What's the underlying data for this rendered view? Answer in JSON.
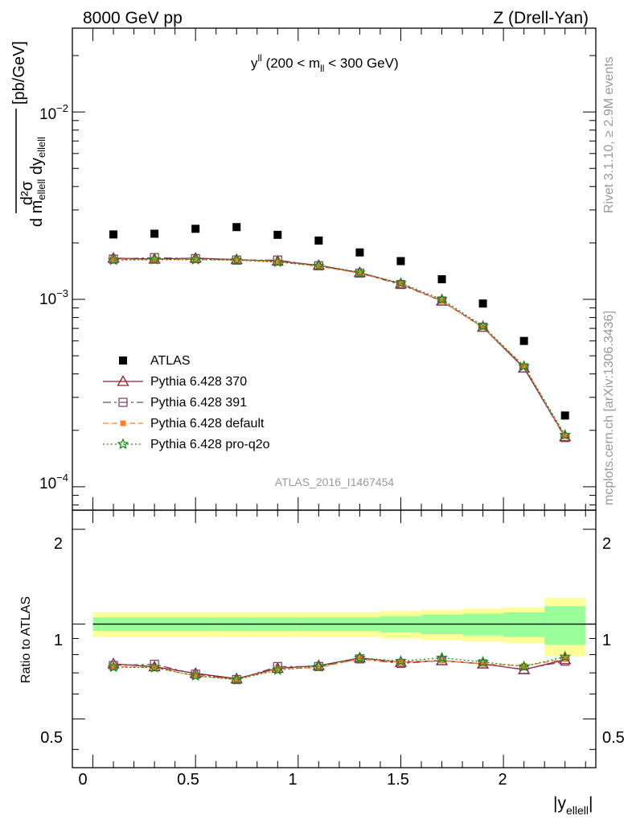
{
  "header": {
    "left": "8000 GeV pp",
    "right": "Z (Drell-Yan)"
  },
  "side": {
    "rivet": "Rivet 3.1.10, ≥ 2.9M events",
    "mcplots": "mcplots.cern.ch [arXiv:1306.3436]"
  },
  "plot_title": {
    "main": "y",
    "sup": "ll",
    "range_a": " (200 < m",
    "sub": "ll",
    "range_b": " < 300 GeV)"
  },
  "analysis_tag": "ATLAS_2016_I1467454",
  "y_axis_main": {
    "num": "d²σ",
    "den_a": "d m",
    "den_sub": "ellell",
    "den_b": " dy",
    "den_sub2": "ellell",
    "units": "[pb/GeV]"
  },
  "y_axis_ratio": "Ratio to ATLAS",
  "x_axis": {
    "label": "|y",
    "sub": "ellell",
    "close": "|"
  },
  "main_ticks": [
    {
      "base": "10",
      "exp": "−2"
    },
    {
      "base": "10",
      "exp": "−3"
    },
    {
      "base": "10",
      "exp": "−4"
    }
  ],
  "ratio_ticks": [
    "2",
    "1",
    "0.5"
  ],
  "x_ticks": [
    "0",
    "0.5",
    "1",
    "1.5",
    "2"
  ],
  "colors": {
    "data": "#000000",
    "p370": "#9b1b30",
    "p391": "#7a4a66",
    "pdef": "#ff7f2a",
    "pq2o": "#1a8a1a",
    "band_inner": "#99ff99",
    "band_outer": "#ffff99"
  },
  "chart_data": {
    "type": "scatter",
    "x": [
      0.1,
      0.3,
      0.5,
      0.7,
      0.9,
      1.1,
      1.3,
      1.5,
      1.7,
      1.9,
      2.1,
      2.3
    ],
    "x_edges": [
      0,
      0.2,
      0.4,
      0.6,
      0.8,
      1.0,
      1.2,
      1.4,
      1.6,
      1.8,
      2.0,
      2.2,
      2.4
    ],
    "xlim": [
      -0.1,
      2.45
    ],
    "ylim_main": [
      7.5e-05,
      0.028
    ],
    "ylog": true,
    "ylim_ratio": [
      0.35,
      2.3
    ],
    "ratio_log": true,
    "series": [
      {
        "name": "ATLAS",
        "values": [
          0.00222,
          0.00224,
          0.00238,
          0.00243,
          0.00221,
          0.00206,
          0.00178,
          0.0016,
          0.00128,
          0.00095,
          0.0006,
          0.00024
        ],
        "ratio_band_inner": [
          0.05,
          0.05,
          0.05,
          0.05,
          0.05,
          0.05,
          0.05,
          0.06,
          0.07,
          0.08,
          0.09,
          0.14
        ],
        "ratio_band_outer": [
          0.09,
          0.09,
          0.09,
          0.09,
          0.09,
          0.09,
          0.09,
          0.1,
          0.11,
          0.12,
          0.13,
          0.21
        ]
      },
      {
        "name": "Pythia 6.428 370",
        "values": [
          0.00166,
          0.00164,
          0.00166,
          0.00163,
          0.0016,
          0.00152,
          0.00139,
          0.00121,
          0.00098,
          0.00071,
          0.00043,
          0.000185
        ]
      },
      {
        "name": "Pythia 6.428 391",
        "values": [
          0.00164,
          0.00167,
          0.00165,
          0.00162,
          0.00162,
          0.00151,
          0.00138,
          0.0012,
          0.00098,
          0.00071,
          0.000431,
          0.000183
        ]
      },
      {
        "name": "Pythia 6.428 default",
        "values": [
          0.00163,
          0.00163,
          0.00163,
          0.00162,
          0.00159,
          0.0015,
          0.00138,
          0.00121,
          0.00098,
          0.00071,
          0.000442,
          0.000186
        ]
      },
      {
        "name": "Pythia 6.428 pro-q2o",
        "values": [
          0.00162,
          0.00163,
          0.00163,
          0.00162,
          0.00158,
          0.00151,
          0.00139,
          0.00122,
          0.001,
          0.00072,
          0.00044,
          0.000189
        ]
      }
    ],
    "legend": [
      "ATLAS",
      "Pythia 6.428 370",
      "Pythia 6.428 391",
      "Pythia 6.428 default",
      "Pythia 6.428 pro-q2o"
    ],
    "legend_position": "bottom-left",
    "grid": false
  }
}
